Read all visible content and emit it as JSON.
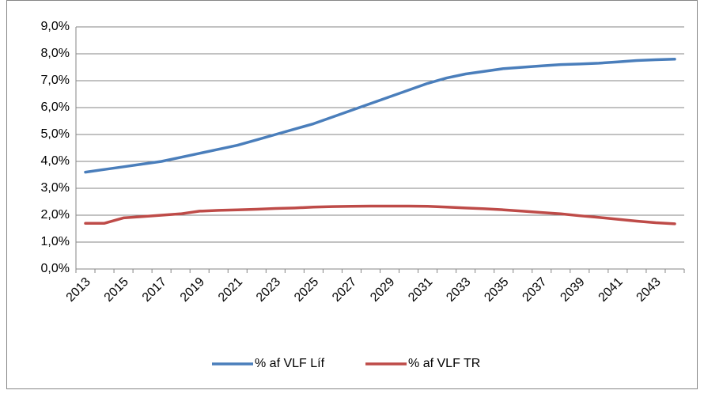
{
  "chart_data": {
    "type": "line",
    "categories": [
      2013,
      null,
      2015,
      null,
      2017,
      null,
      2019,
      null,
      2021,
      null,
      2023,
      null,
      2025,
      null,
      2027,
      null,
      2029,
      null,
      2031,
      null,
      2033,
      null,
      2035,
      null,
      2037,
      null,
      2039,
      null,
      2041,
      null,
      2043,
      null
    ],
    "series": [
      {
        "name": "% af VLF Líf",
        "color": "#4a7ebb",
        "values": [
          3.6,
          3.7,
          3.8,
          3.9,
          4.0,
          4.15,
          4.3,
          4.45,
          4.6,
          4.8,
          5.0,
          5.2,
          5.4,
          5.65,
          5.9,
          6.15,
          6.4,
          6.65,
          6.9,
          7.1,
          7.25,
          7.35,
          7.45,
          7.5,
          7.55,
          7.6,
          7.62,
          7.65,
          7.7,
          7.75,
          7.78,
          7.8
        ]
      },
      {
        "name": "% af VLF TR",
        "color": "#be4b48",
        "values": [
          1.7,
          1.7,
          1.9,
          1.95,
          2.0,
          2.05,
          2.15,
          2.18,
          2.2,
          2.22,
          2.25,
          2.27,
          2.3,
          2.32,
          2.33,
          2.34,
          2.34,
          2.34,
          2.33,
          2.3,
          2.27,
          2.24,
          2.2,
          2.15,
          2.1,
          2.05,
          1.98,
          1.92,
          1.85,
          1.78,
          1.72,
          1.68
        ]
      }
    ],
    "ylim": [
      0,
      9
    ],
    "yticks": [
      {
        "value": 0,
        "label": "0,0%"
      },
      {
        "value": 1,
        "label": "1,0%"
      },
      {
        "value": 2,
        "label": "2,0%"
      },
      {
        "value": 3,
        "label": "3,0%"
      },
      {
        "value": 4,
        "label": "4,0%"
      },
      {
        "value": 5,
        "label": "5,0%"
      },
      {
        "value": 6,
        "label": "6,0%"
      },
      {
        "value": 7,
        "label": "7,0%"
      },
      {
        "value": 8,
        "label": "8,0%"
      },
      {
        "value": 9,
        "label": "9,0%"
      }
    ],
    "grid": true,
    "legend": "bottom"
  }
}
